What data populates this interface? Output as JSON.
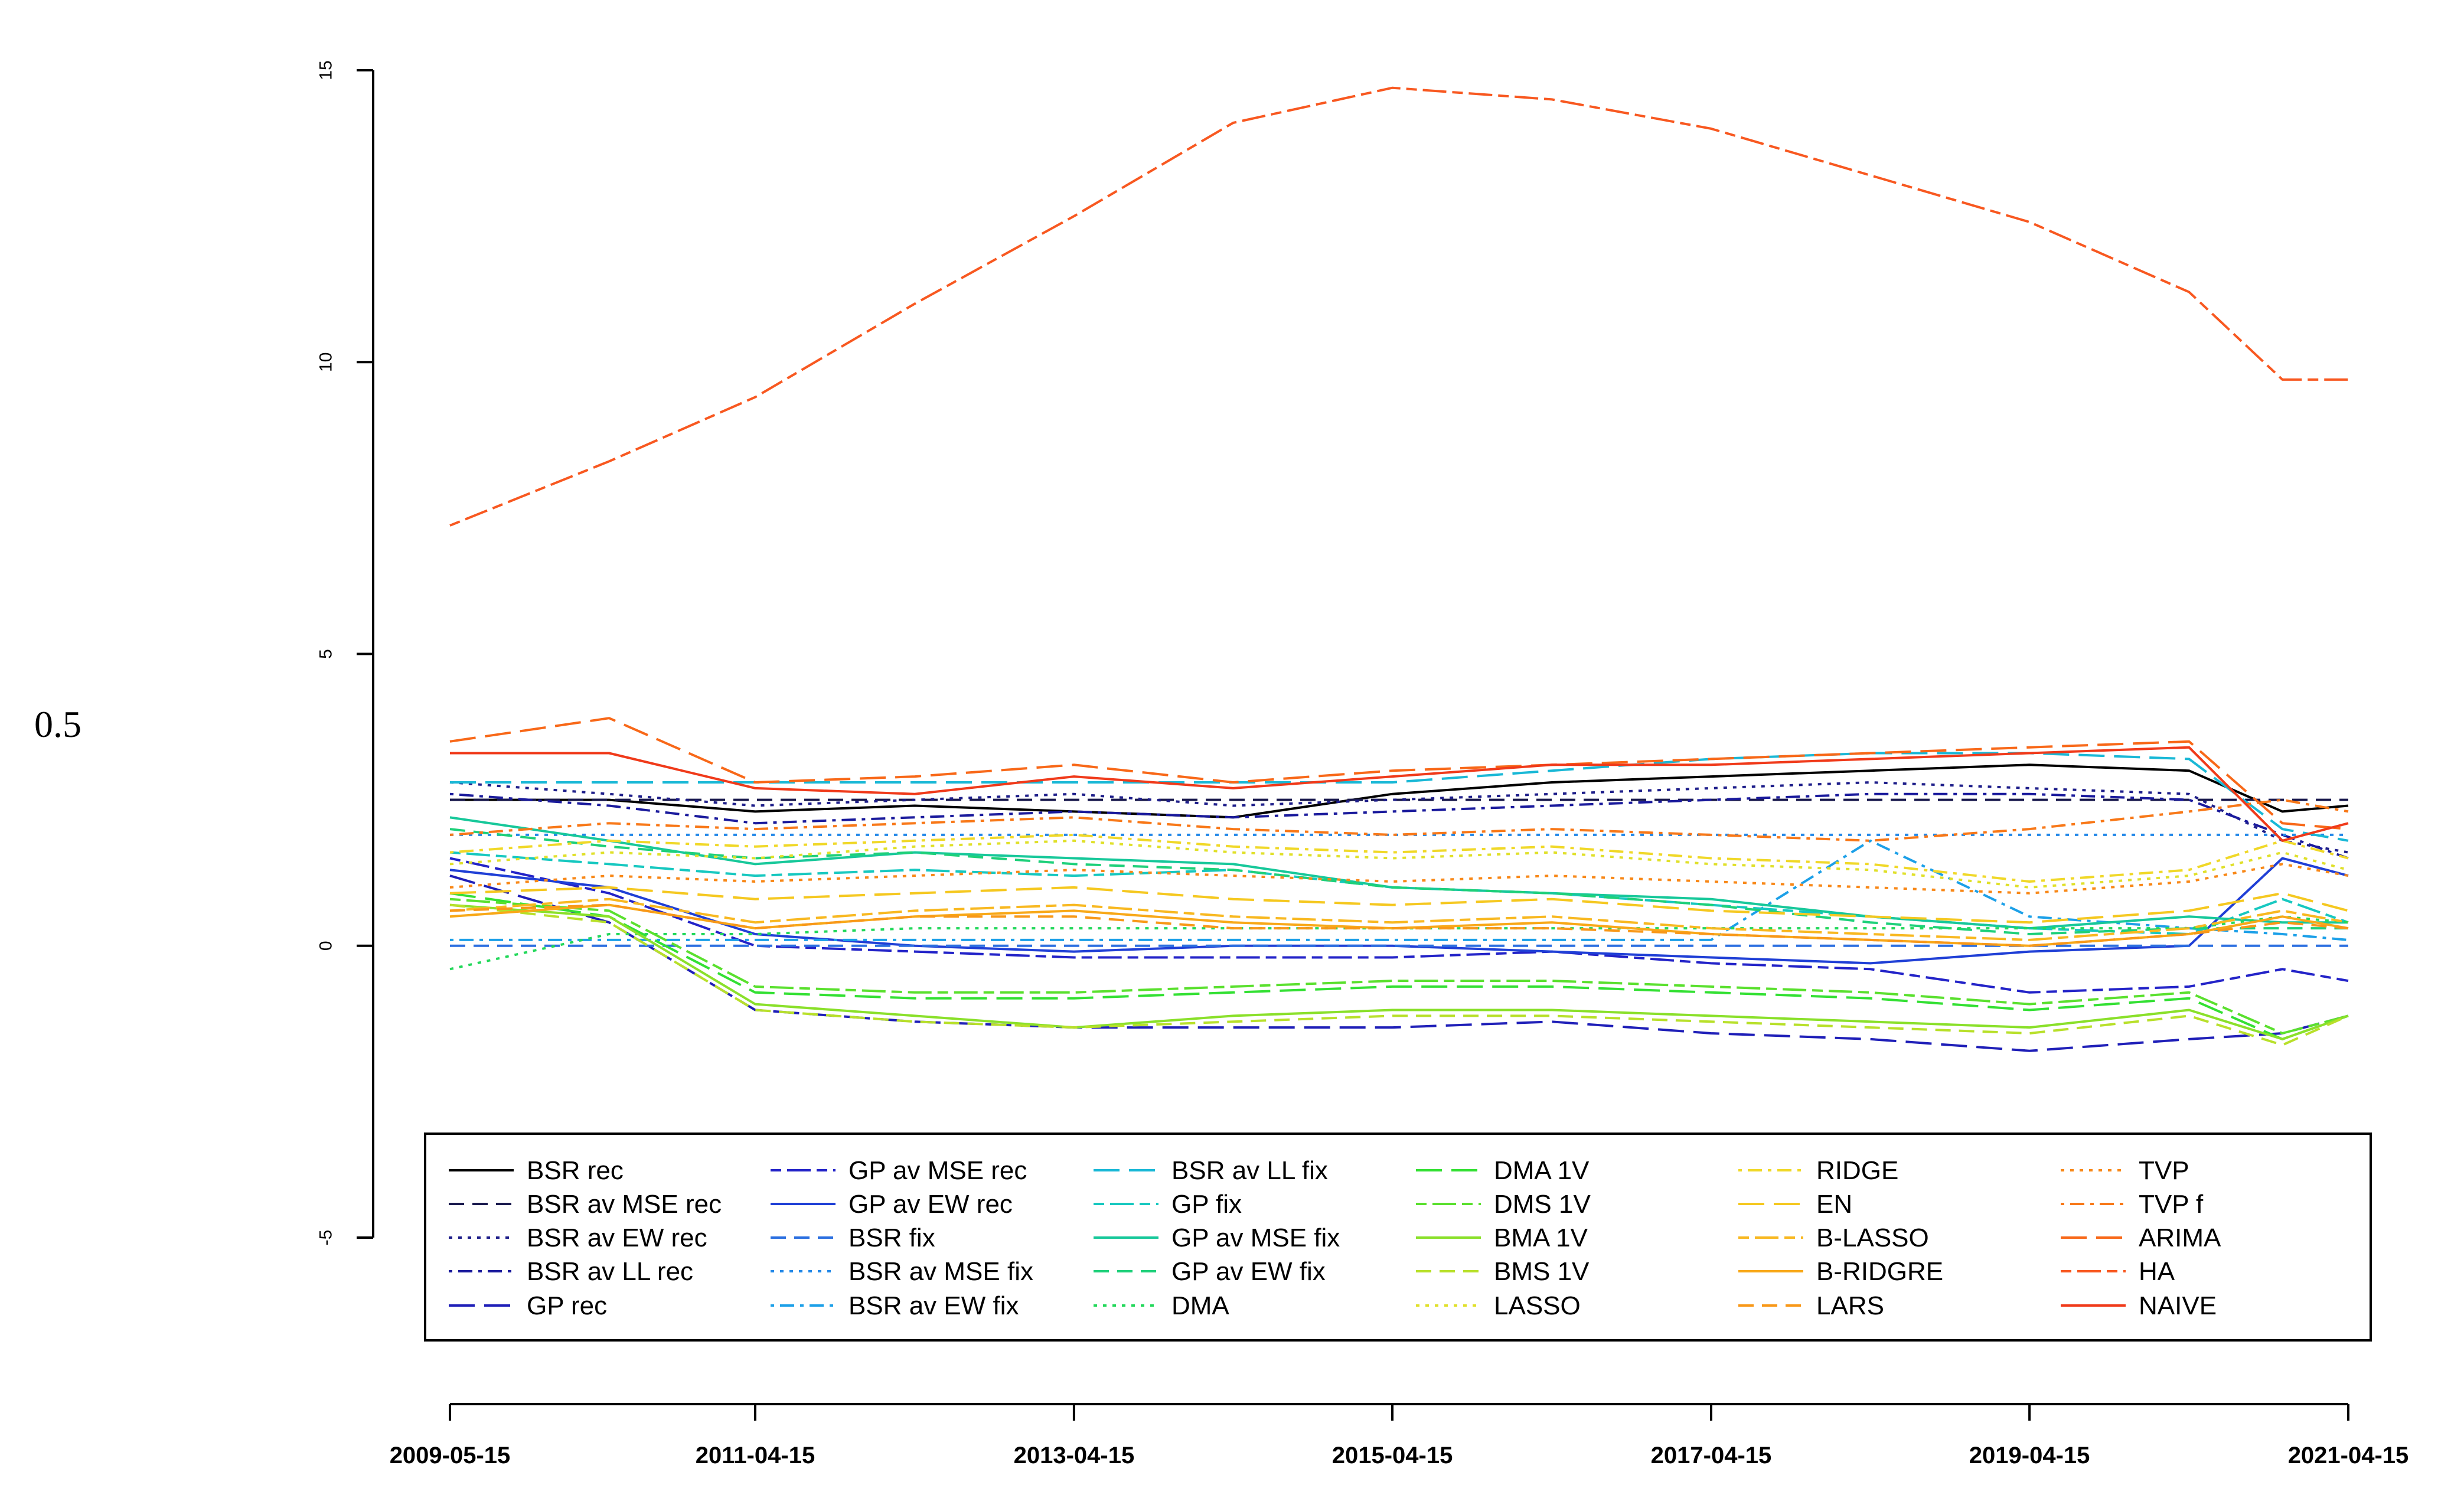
{
  "side_label": "0.5",
  "chart_data": {
    "type": "line",
    "title": "",
    "xlabel": "",
    "ylabel": "",
    "x": [
      "2009-05-15",
      "2010-05-15",
      "2011-04-15",
      "2012-04-15",
      "2013-04-15",
      "2014-04-15",
      "2015-04-15",
      "2016-04-15",
      "2017-04-15",
      "2018-04-15",
      "2019-04-15",
      "2020-04-15",
      "2020-11-15",
      "2021-04-15"
    ],
    "x_ticks": [
      "2009-05-15",
      "2011-04-15",
      "2013-04-15",
      "2015-04-15",
      "2017-04-15",
      "2019-04-15",
      "2021-04-15"
    ],
    "y_ticks": [
      15,
      10,
      5,
      0,
      -5
    ],
    "ylim": [
      -5,
      15
    ],
    "grid": false,
    "legend_position": "bottom",
    "series": [
      {
        "name": "BSR rec",
        "color": "#000000",
        "dash": "solid",
        "values": [
          2.5,
          2.5,
          2.3,
          2.4,
          2.3,
          2.2,
          2.6,
          2.8,
          2.9,
          3.0,
          3.1,
          3.0,
          2.3,
          2.4
        ]
      },
      {
        "name": "BSR av MSE rec",
        "color": "#1a1a4e",
        "dash": "dashed",
        "values": [
          2.5,
          2.5,
          2.5,
          2.5,
          2.5,
          2.5,
          2.5,
          2.5,
          2.5,
          2.5,
          2.5,
          2.5,
          2.5,
          2.5
        ]
      },
      {
        "name": "BSR av EW rec",
        "color": "#1e1e8a",
        "dash": "dotted",
        "values": [
          2.8,
          2.6,
          2.4,
          2.5,
          2.6,
          2.4,
          2.5,
          2.6,
          2.7,
          2.8,
          2.7,
          2.6,
          1.8,
          1.6
        ]
      },
      {
        "name": "BSR av LL rec",
        "color": "#1a1a9c",
        "dash": "dotdash",
        "values": [
          2.6,
          2.4,
          2.1,
          2.2,
          2.3,
          2.2,
          2.3,
          2.4,
          2.5,
          2.6,
          2.6,
          2.5,
          1.9,
          1.5
        ]
      },
      {
        "name": "GP rec",
        "color": "#1f1fb8",
        "dash": "longdash",
        "values": [
          1.2,
          0.4,
          -1.1,
          -1.3,
          -1.4,
          -1.4,
          -1.4,
          -1.3,
          -1.5,
          -1.6,
          -1.8,
          -1.6,
          -1.5,
          -1.2
        ]
      },
      {
        "name": "GP av MSE rec",
        "color": "#2323c8",
        "dash": "twodash",
        "values": [
          1.5,
          0.9,
          0.0,
          -0.1,
          -0.2,
          -0.2,
          -0.2,
          -0.1,
          -0.3,
          -0.4,
          -0.8,
          -0.7,
          -0.4,
          -0.6
        ]
      },
      {
        "name": "GP av EW rec",
        "color": "#1f3fd6",
        "dash": "solid",
        "values": [
          1.3,
          1.0,
          0.2,
          0.0,
          -0.1,
          0.0,
          0.0,
          -0.1,
          -0.2,
          -0.3,
          -0.1,
          0.0,
          1.5,
          1.2
        ]
      },
      {
        "name": "BSR fix",
        "color": "#2b6fe0",
        "dash": "dashed",
        "values": [
          0.0,
          0.0,
          0.0,
          0.0,
          0.0,
          0.0,
          0.0,
          0.0,
          0.0,
          0.0,
          0.0,
          0.0,
          0.0,
          0.0
        ]
      },
      {
        "name": "BSR av MSE fix",
        "color": "#2288e8",
        "dash": "dotted",
        "values": [
          1.9,
          1.9,
          1.9,
          1.9,
          1.9,
          1.9,
          1.9,
          1.9,
          1.9,
          1.9,
          1.9,
          1.9,
          1.9,
          1.9
        ]
      },
      {
        "name": "BSR av EW fix",
        "color": "#1ca0e8",
        "dash": "dotdash",
        "values": [
          0.1,
          0.1,
          0.1,
          0.1,
          0.1,
          0.1,
          0.1,
          0.1,
          0.1,
          1.8,
          0.5,
          0.3,
          0.2,
          0.1
        ]
      },
      {
        "name": "BSR av LL fix",
        "color": "#19b8d6",
        "dash": "longdash",
        "values": [
          2.8,
          2.8,
          2.8,
          2.8,
          2.8,
          2.8,
          2.8,
          3.0,
          3.2,
          3.3,
          3.3,
          3.2,
          2.0,
          1.8
        ]
      },
      {
        "name": "GP fix",
        "color": "#17c8c0",
        "dash": "twodash",
        "values": [
          1.6,
          1.4,
          1.2,
          1.3,
          1.2,
          1.3,
          1.0,
          0.9,
          0.7,
          0.5,
          0.3,
          0.2,
          0.8,
          0.4
        ]
      },
      {
        "name": "GP av MSE fix",
        "color": "#17c89a",
        "dash": "solid",
        "values": [
          2.2,
          1.8,
          1.4,
          1.6,
          1.5,
          1.4,
          1.0,
          0.9,
          0.8,
          0.5,
          0.3,
          0.5,
          0.4,
          0.4
        ]
      },
      {
        "name": "GP av EW fix",
        "color": "#1ed07a",
        "dash": "dashed",
        "values": [
          2.0,
          1.7,
          1.5,
          1.6,
          1.4,
          1.3,
          1.0,
          0.9,
          0.7,
          0.4,
          0.2,
          0.3,
          0.3,
          0.3
        ]
      },
      {
        "name": "DMA",
        "color": "#22d85a",
        "dash": "dotted",
        "values": [
          -0.4,
          0.2,
          0.2,
          0.3,
          0.3,
          0.3,
          0.3,
          0.3,
          0.3,
          0.3,
          0.3,
          0.3,
          0.5,
          0.4
        ]
      },
      {
        "name": "DMA 1V",
        "color": "#33e033",
        "dash": "longdash",
        "values": [
          0.9,
          0.5,
          -0.8,
          -0.9,
          -0.9,
          -0.8,
          -0.7,
          -0.7,
          -0.8,
          -0.9,
          -1.1,
          -0.9,
          -1.6,
          -1.2
        ]
      },
      {
        "name": "DMS 1V",
        "color": "#5ae02e",
        "dash": "twodash",
        "values": [
          0.8,
          0.6,
          -0.7,
          -0.8,
          -0.8,
          -0.7,
          -0.6,
          -0.6,
          -0.7,
          -0.8,
          -1.0,
          -0.8,
          -1.5,
          -1.2
        ]
      },
      {
        "name": "BMA 1V",
        "color": "#8ae02a",
        "dash": "solid",
        "values": [
          0.7,
          0.5,
          -1.0,
          -1.2,
          -1.4,
          -1.2,
          -1.1,
          -1.1,
          -1.2,
          -1.3,
          -1.4,
          -1.1,
          -1.6,
          -1.2
        ]
      },
      {
        "name": "BMS 1V",
        "color": "#b8e02a",
        "dash": "dashed",
        "values": [
          0.7,
          0.4,
          -1.1,
          -1.3,
          -1.4,
          -1.3,
          -1.2,
          -1.2,
          -1.3,
          -1.4,
          -1.5,
          -1.2,
          -1.7,
          -1.2
        ]
      },
      {
        "name": "LASSO",
        "color": "#e0e02a",
        "dash": "dotted",
        "values": [
          1.4,
          1.6,
          1.5,
          1.7,
          1.8,
          1.6,
          1.5,
          1.6,
          1.4,
          1.3,
          1.0,
          1.2,
          1.6,
          1.3
        ]
      },
      {
        "name": "RIDGE",
        "color": "#f0d828",
        "dash": "dotdash",
        "values": [
          1.6,
          1.8,
          1.7,
          1.8,
          1.9,
          1.7,
          1.6,
          1.7,
          1.5,
          1.4,
          1.1,
          1.3,
          1.8,
          1.5
        ]
      },
      {
        "name": "EN",
        "color": "#f5c820",
        "dash": "longdash",
        "values": [
          0.9,
          1.0,
          0.8,
          0.9,
          1.0,
          0.8,
          0.7,
          0.8,
          0.6,
          0.5,
          0.4,
          0.6,
          0.9,
          0.6
        ]
      },
      {
        "name": "B-LASSO",
        "color": "#f8b820",
        "dash": "twodash",
        "values": [
          0.6,
          0.8,
          0.4,
          0.6,
          0.7,
          0.5,
          0.4,
          0.5,
          0.3,
          0.2,
          0.1,
          0.3,
          0.6,
          0.4
        ]
      },
      {
        "name": "B-RIDGRE",
        "color": "#f8a818",
        "dash": "solid",
        "values": [
          0.5,
          0.7,
          0.3,
          0.5,
          0.6,
          0.4,
          0.3,
          0.4,
          0.2,
          0.1,
          0.0,
          0.2,
          0.5,
          0.3
        ]
      },
      {
        "name": "LARS",
        "color": "#f89818",
        "dash": "dashed",
        "values": [
          0.6,
          0.7,
          0.3,
          0.5,
          0.5,
          0.3,
          0.3,
          0.3,
          0.2,
          0.1,
          0.0,
          0.2,
          0.4,
          0.3
        ]
      },
      {
        "name": "TVP",
        "color": "#f88818",
        "dash": "dotted",
        "values": [
          1.0,
          1.2,
          1.1,
          1.2,
          1.3,
          1.2,
          1.1,
          1.2,
          1.1,
          1.0,
          0.9,
          1.1,
          1.4,
          1.2
        ]
      },
      {
        "name": "TVP f",
        "color": "#f87818",
        "dash": "dotdash",
        "values": [
          1.9,
          2.1,
          2.0,
          2.1,
          2.2,
          2.0,
          1.9,
          2.0,
          1.9,
          1.8,
          2.0,
          2.3,
          2.5,
          2.3
        ]
      },
      {
        "name": "ARIMA",
        "color": "#f86818",
        "dash": "longdash",
        "values": [
          3.5,
          3.9,
          2.8,
          2.9,
          3.1,
          2.8,
          3.0,
          3.1,
          3.2,
          3.3,
          3.4,
          3.5,
          2.1,
          2.0
        ]
      },
      {
        "name": "HA",
        "color": "#f85820",
        "dash": "twodash",
        "values": [
          7.2,
          8.3,
          9.4,
          11.0,
          12.5,
          14.1,
          14.7,
          14.5,
          14.0,
          13.2,
          12.4,
          11.2,
          9.7,
          9.7
        ]
      },
      {
        "name": "NAIVE",
        "color": "#f03a1a",
        "dash": "solid",
        "values": [
          3.3,
          3.3,
          2.7,
          2.6,
          2.9,
          2.7,
          2.9,
          3.1,
          3.1,
          3.2,
          3.3,
          3.4,
          1.8,
          2.1
        ]
      }
    ]
  }
}
